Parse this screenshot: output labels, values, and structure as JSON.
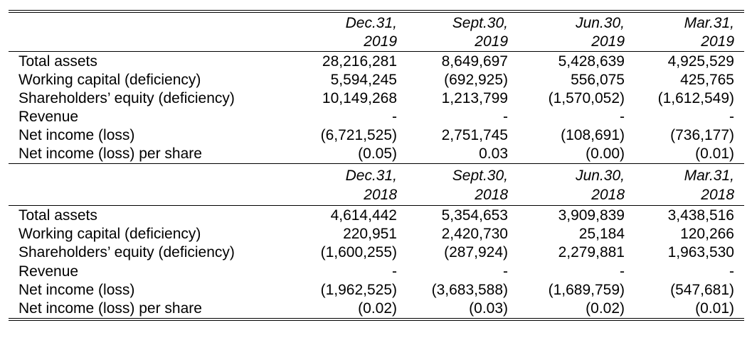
{
  "sections": [
    {
      "periods": [
        {
          "line1": "Dec.31,",
          "line2": "2019"
        },
        {
          "line1": "Sept.30,",
          "line2": "2019"
        },
        {
          "line1": "Jun.30,",
          "line2": "2019"
        },
        {
          "line1": "Mar.31,",
          "line2": "2019"
        }
      ],
      "rows": [
        {
          "label": "Total assets",
          "values": [
            "28,216,281",
            "8,649,697",
            "5,428,639",
            "4,925,529"
          ]
        },
        {
          "label": "Working capital (deficiency)",
          "values": [
            "5,594,245",
            "(692,925)",
            "556,075",
            "425,765"
          ]
        },
        {
          "label": "Shareholders’ equity (deficiency)",
          "values": [
            "10,149,268",
            "1,213,799",
            "(1,570,052)",
            "(1,612,549)"
          ]
        },
        {
          "label": "Revenue",
          "values": [
            "-",
            "-",
            "-",
            "-"
          ]
        },
        {
          "label": "Net income (loss)",
          "values": [
            "(6,721,525)",
            "2,751,745",
            "(108,691)",
            "(736,177)"
          ]
        },
        {
          "label": "Net income (loss) per share",
          "values": [
            "(0.05)",
            "0.03",
            "(0.00)",
            "(0.01)"
          ]
        }
      ]
    },
    {
      "periods": [
        {
          "line1": "Dec.31,",
          "line2": "2018"
        },
        {
          "line1": "Sept.30,",
          "line2": "2018"
        },
        {
          "line1": "Jun.30,",
          "line2": "2018"
        },
        {
          "line1": "Mar.31,",
          "line2": "2018"
        }
      ],
      "rows": [
        {
          "label": "Total assets",
          "values": [
            "4,614,442",
            "5,354,653",
            "3,909,839",
            "3,438,516"
          ]
        },
        {
          "label": "Working capital (deficiency)",
          "values": [
            "220,951",
            "2,420,730",
            "25,184",
            "120,266"
          ]
        },
        {
          "label": "Shareholders’ equity (deficiency)",
          "values": [
            "(1,600,255)",
            "(287,924)",
            "2,279,881",
            "1,963,530"
          ]
        },
        {
          "label": "Revenue",
          "values": [
            "-",
            "-",
            "-",
            "-"
          ]
        },
        {
          "label": "Net income (loss)",
          "values": [
            "(1,962,525)",
            "(3,683,588)",
            "(1,689,759)",
            "(547,681)"
          ]
        },
        {
          "label": "Net income (loss) per share",
          "values": [
            "(0.02)",
            "(0.03)",
            "(0.02)",
            "(0.01)"
          ]
        }
      ]
    }
  ]
}
